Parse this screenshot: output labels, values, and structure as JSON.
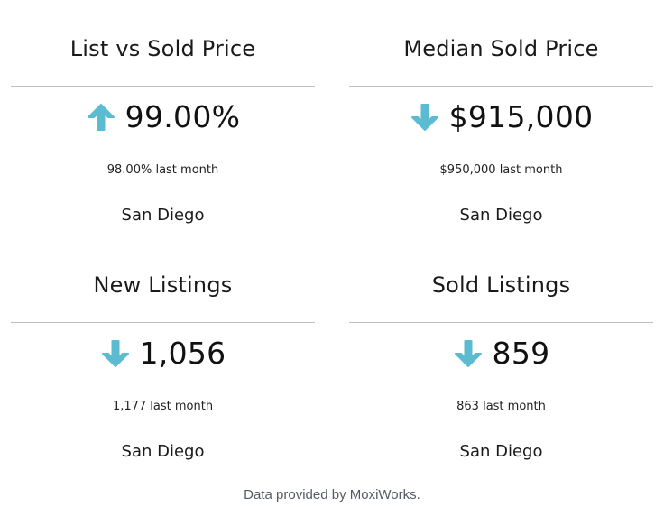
{
  "accent_color": "#5bbcd1",
  "cards": [
    {
      "title": "List vs Sold Price",
      "trend": "up",
      "trend_icon": "arrow-up-icon",
      "value": "99.00%",
      "last_month": "98.00% last month",
      "city": "San Diego"
    },
    {
      "title": "Median Sold Price",
      "trend": "down",
      "trend_icon": "arrow-down-icon",
      "value": "$915,000",
      "last_month": "$950,000 last month",
      "city": "San Diego"
    },
    {
      "title": "New Listings",
      "trend": "down",
      "trend_icon": "arrow-down-icon",
      "value": "1,056",
      "last_month": "1,177 last month",
      "city": "San Diego"
    },
    {
      "title": "Sold Listings",
      "trend": "down",
      "trend_icon": "arrow-down-icon",
      "value": "859",
      "last_month": "863 last month",
      "city": "San Diego"
    }
  ],
  "footer": {
    "text": "Data provided by MoxiWorks."
  }
}
